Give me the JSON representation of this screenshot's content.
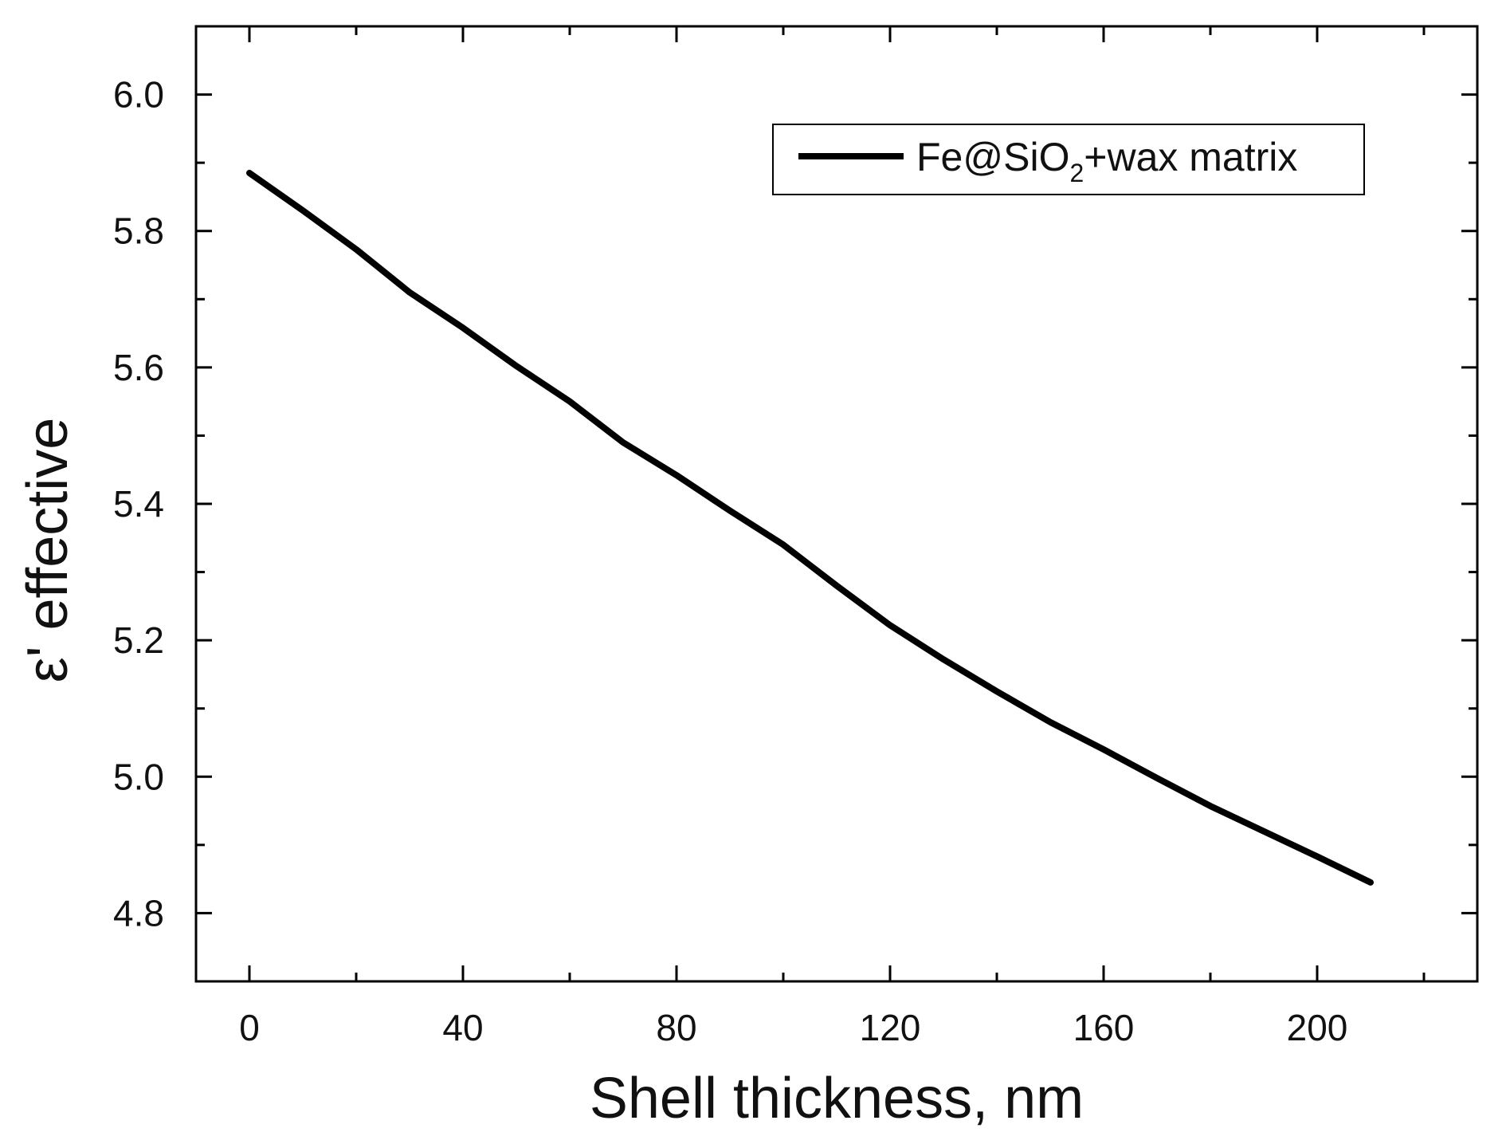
{
  "chart_data": {
    "type": "line",
    "title": "",
    "xlabel": "Shell thickness, nm",
    "ylabel": "ε' effective",
    "xlim": [
      -10,
      230
    ],
    "ylim": [
      4.7,
      6.1
    ],
    "x_major_ticks": [
      0,
      40,
      80,
      120,
      160,
      200
    ],
    "x_tick_labels": [
      "0",
      "40",
      "80",
      "120",
      "160",
      "200"
    ],
    "x_minor_ticks": [
      20,
      60,
      100,
      140,
      180,
      220
    ],
    "y_major_ticks": [
      4.8,
      5.0,
      5.2,
      5.4,
      5.6,
      5.8,
      6.0
    ],
    "y_tick_labels": [
      "4.8",
      "5.0",
      "5.2",
      "5.4",
      "5.6",
      "5.8",
      "6.0"
    ],
    "y_minor_ticks": [
      4.9,
      5.1,
      5.3,
      5.5,
      5.7,
      5.9
    ],
    "grid": false,
    "legend_position": "top-right",
    "series": [
      {
        "name": "Fe@SiO2+wax matrix",
        "legend_main": "Fe@SiO",
        "legend_sub": "2",
        "legend_tail": "+wax matrix",
        "color": "#000000",
        "x": [
          0,
          10,
          20,
          30,
          40,
          50,
          60,
          70,
          80,
          90,
          100,
          110,
          120,
          130,
          140,
          150,
          160,
          170,
          180,
          190,
          200,
          210
        ],
        "y": [
          5.885,
          5.83,
          5.773,
          5.71,
          5.658,
          5.602,
          5.55,
          5.49,
          5.442,
          5.39,
          5.34,
          5.28,
          5.222,
          5.172,
          5.125,
          5.08,
          5.04,
          4.998,
          4.957,
          4.92,
          4.883,
          4.845
        ]
      }
    ]
  }
}
